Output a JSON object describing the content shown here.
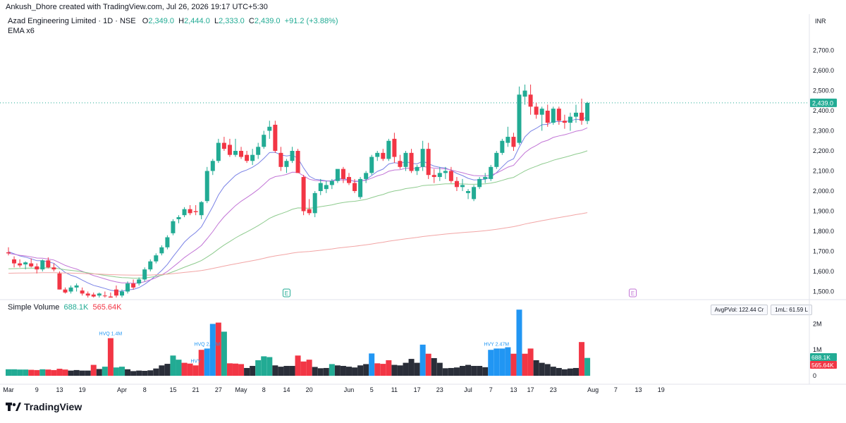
{
  "header": {
    "credit": "Ankush_Dhore created with TradingView.com, Jul 26, 2026 19:17 UTC+5:30"
  },
  "legend": {
    "symbol": "Azad Engineering Limited · 1D · NSE",
    "open_label": "O",
    "open": "2,349.0",
    "high_label": "H",
    "high": "2,444.0",
    "low_label": "L",
    "low": "2,333.0",
    "close_label": "C",
    "close": "2,439.0",
    "change": "+91.2 (+3.88%)",
    "indicator": "EMA x6"
  },
  "volume_legend": {
    "title": "Simple Volume",
    "v1": "688.1K",
    "v2": "565.64K"
  },
  "pills": {
    "avg": "AvgPVol: 122.44 Cr",
    "ml": "1mL: 61.59 L"
  },
  "brand": {
    "name": "TradingView"
  },
  "colors": {
    "up": "#22ab94",
    "down": "#f23645",
    "neutral": "#2a2e39",
    "hv": "#2196f3",
    "ema1": "#7b83e6",
    "ema2": "#c275d6",
    "ema3": "#8ecb8e",
    "ema4": "#f2a5a5"
  },
  "icons": {
    "event": "earnings-e-icon"
  },
  "chart_data": {
    "type": "candlestick",
    "currency": "INR",
    "price_ticks": [
      "2,700.0",
      "2,600.0",
      "2,500.0",
      "2,400.0",
      "2,300.0",
      "2,200.0",
      "2,100.0",
      "2,000.0",
      "1,900.0",
      "1,800.0",
      "1,700.0",
      "1,600.0",
      "1,500.0"
    ],
    "price_tick_values": [
      2700,
      2600,
      2500,
      2400,
      2300,
      2200,
      2100,
      2000,
      1900,
      1800,
      1700,
      1600,
      1500
    ],
    "price_range": [
      1460,
      2830
    ],
    "last_price_label": "2,439.0",
    "last_price": 2439,
    "volume_ticks": [
      "2M",
      "1M",
      "0"
    ],
    "volume_tick_values": [
      2000000,
      1000000,
      0
    ],
    "volume_range": [
      0,
      2800000
    ],
    "volume_last_labels": [
      "688.1K",
      "565.64K"
    ],
    "volume_last_values": [
      688100,
      565640
    ],
    "x_ticks": [
      {
        "label": "Mar",
        "idx": 0
      },
      {
        "label": "9",
        "idx": 5
      },
      {
        "label": "13",
        "idx": 9
      },
      {
        "label": "19",
        "idx": 13
      },
      {
        "label": "Apr",
        "idx": 20
      },
      {
        "label": "8",
        "idx": 24
      },
      {
        "label": "15",
        "idx": 29
      },
      {
        "label": "21",
        "idx": 33
      },
      {
        "label": "27",
        "idx": 37
      },
      {
        "label": "May",
        "idx": 41
      },
      {
        "label": "8",
        "idx": 45
      },
      {
        "label": "14",
        "idx": 49
      },
      {
        "label": "20",
        "idx": 53
      },
      {
        "label": "Jun",
        "idx": 60
      },
      {
        "label": "5",
        "idx": 64
      },
      {
        "label": "11",
        "idx": 68
      },
      {
        "label": "17",
        "idx": 72
      },
      {
        "label": "23",
        "idx": 76
      },
      {
        "label": "Jul",
        "idx": 81
      },
      {
        "label": "7",
        "idx": 85
      },
      {
        "label": "13",
        "idx": 89
      },
      {
        "label": "17",
        "idx": 92
      },
      {
        "label": "23",
        "idx": 96
      },
      {
        "label": "Aug",
        "idx": 103
      },
      {
        "label": "7",
        "idx": 107
      },
      {
        "label": "13",
        "idx": 111
      },
      {
        "label": "19",
        "idx": 115
      }
    ],
    "volume_annotations": [
      {
        "label": "HVQ 1.4M",
        "idx": 18
      },
      {
        "label": "HVY",
        "idx": 33
      },
      {
        "label": "HVQ 2.83M",
        "idx": 35
      },
      {
        "label": "HVY 2.47M",
        "idx": 86
      }
    ],
    "events": [
      {
        "label": "E",
        "idx": 49
      },
      {
        "label": "E",
        "idx": 110
      }
    ],
    "ohlc": [
      [
        1695,
        1720,
        1680,
        1690
      ],
      [
        1660,
        1675,
        1620,
        1640
      ],
      [
        1640,
        1660,
        1620,
        1630
      ],
      [
        1635,
        1650,
        1610,
        1645
      ],
      [
        1640,
        1665,
        1620,
        1625
      ],
      [
        1625,
        1640,
        1590,
        1610
      ],
      [
        1610,
        1660,
        1600,
        1655
      ],
      [
        1655,
        1670,
        1615,
        1620
      ],
      [
        1620,
        1640,
        1600,
        1610
      ],
      [
        1590,
        1600,
        1510,
        1510
      ],
      [
        1510,
        1520,
        1490,
        1495
      ],
      [
        1500,
        1530,
        1490,
        1520
      ],
      [
        1520,
        1540,
        1500,
        1530
      ],
      [
        1505,
        1520,
        1480,
        1490
      ],
      [
        1490,
        1500,
        1470,
        1480
      ],
      [
        1485,
        1495,
        1470,
        1475
      ],
      [
        1480,
        1495,
        1470,
        1490
      ],
      [
        1480,
        1500,
        1470,
        1478
      ],
      [
        1475,
        1495,
        1470,
        1470
      ],
      [
        1510,
        1530,
        1470,
        1480
      ],
      [
        1480,
        1510,
        1470,
        1500
      ],
      [
        1500,
        1550,
        1490,
        1540
      ],
      [
        1540,
        1560,
        1510,
        1520
      ],
      [
        1540,
        1570,
        1530,
        1560
      ],
      [
        1560,
        1620,
        1550,
        1610
      ],
      [
        1610,
        1660,
        1600,
        1650
      ],
      [
        1650,
        1690,
        1640,
        1680
      ],
      [
        1690,
        1730,
        1680,
        1720
      ],
      [
        1720,
        1780,
        1710,
        1770
      ],
      [
        1790,
        1860,
        1780,
        1850
      ],
      [
        1860,
        1880,
        1840,
        1870
      ],
      [
        1880,
        1920,
        1870,
        1910
      ],
      [
        1910,
        1930,
        1880,
        1890
      ],
      [
        1900,
        1930,
        1880,
        1895
      ],
      [
        1880,
        1950,
        1860,
        1945
      ],
      [
        1950,
        2120,
        1940,
        2100
      ],
      [
        2100,
        2160,
        2080,
        2150
      ],
      [
        2150,
        2260,
        2140,
        2240
      ],
      [
        2240,
        2270,
        2200,
        2210
      ],
      [
        2230,
        2260,
        2170,
        2180
      ],
      [
        2180,
        2260,
        2170,
        2200
      ],
      [
        2200,
        2220,
        2160,
        2170
      ],
      [
        2180,
        2200,
        2140,
        2150
      ],
      [
        2150,
        2210,
        2130,
        2180
      ],
      [
        2180,
        2240,
        2160,
        2220
      ],
      [
        2220,
        2300,
        2210,
        2280
      ],
      [
        2300,
        2350,
        2260,
        2320
      ],
      [
        2330,
        2350,
        2190,
        2200
      ],
      [
        2190,
        2220,
        2100,
        2120
      ],
      [
        2120,
        2160,
        2090,
        2150
      ],
      [
        2150,
        2220,
        2140,
        2200
      ],
      [
        2200,
        2210,
        2090,
        2090
      ],
      [
        2070,
        2080,
        1880,
        1900
      ],
      [
        1910,
        1960,
        1880,
        1890
      ],
      [
        1890,
        2000,
        1870,
        1990
      ],
      [
        2000,
        2060,
        1980,
        2040
      ],
      [
        2010,
        2050,
        1990,
        2030
      ],
      [
        2030,
        2060,
        2010,
        2050
      ],
      [
        2050,
        2100,
        2040,
        2110
      ],
      [
        2110,
        2120,
        2040,
        2060
      ],
      [
        2070,
        2090,
        2030,
        2040
      ],
      [
        2040,
        2060,
        1990,
        2000
      ],
      [
        1970,
        2070,
        1960,
        2060
      ],
      [
        2060,
        2100,
        2040,
        2090
      ],
      [
        2090,
        2180,
        2080,
        2170
      ],
      [
        2170,
        2200,
        2150,
        2190
      ],
      [
        2190,
        2210,
        2150,
        2160
      ],
      [
        2160,
        2260,
        2150,
        2250
      ],
      [
        2260,
        2290,
        2140,
        2170
      ],
      [
        2150,
        2180,
        2110,
        2120
      ],
      [
        2120,
        2200,
        2100,
        2190
      ],
      [
        2190,
        2210,
        2090,
        2100
      ],
      [
        2100,
        2130,
        2080,
        2120
      ],
      [
        2120,
        2250,
        2100,
        2210
      ],
      [
        2210,
        2240,
        2060,
        2080
      ],
      [
        2080,
        2110,
        2040,
        2070
      ],
      [
        2070,
        2120,
        2050,
        2090
      ],
      [
        2090,
        2120,
        2060,
        2100
      ],
      [
        2100,
        2120,
        2040,
        2050
      ],
      [
        2050,
        2070,
        2000,
        2020
      ],
      [
        2020,
        2060,
        2000,
        2030
      ],
      [
        1990,
        2010,
        1960,
        2000
      ],
      [
        1960,
        2030,
        1950,
        2020
      ],
      [
        2020,
        2070,
        2010,
        2060
      ],
      [
        2060,
        2090,
        2040,
        2070
      ],
      [
        2060,
        2130,
        2050,
        2120
      ],
      [
        2120,
        2200,
        2110,
        2190
      ],
      [
        2190,
        2260,
        2180,
        2250
      ],
      [
        2240,
        2320,
        2220,
        2270
      ],
      [
        2270,
        2290,
        2200,
        2220
      ],
      [
        2240,
        2520,
        2230,
        2480
      ],
      [
        2470,
        2530,
        2430,
        2500
      ],
      [
        2480,
        2530,
        2380,
        2420
      ],
      [
        2420,
        2440,
        2360,
        2380
      ],
      [
        2380,
        2420,
        2300,
        2410
      ],
      [
        2400,
        2430,
        2320,
        2340
      ],
      [
        2340,
        2420,
        2330,
        2410
      ],
      [
        2410,
        2420,
        2330,
        2350
      ],
      [
        2350,
        2380,
        2310,
        2340
      ],
      [
        2340,
        2390,
        2300,
        2370
      ],
      [
        2370,
        2430,
        2340,
        2390
      ],
      [
        2390,
        2460,
        2330,
        2350
      ],
      [
        2349,
        2444,
        2333,
        2439
      ]
    ],
    "volume": [
      {
        "v": 250000,
        "c": "up"
      },
      {
        "v": 250000,
        "c": "up"
      },
      {
        "v": 240000,
        "c": "up"
      },
      {
        "v": 240000,
        "c": "up"
      },
      {
        "v": 230000,
        "c": "down"
      },
      {
        "v": 220000,
        "c": "down"
      },
      {
        "v": 250000,
        "c": "up"
      },
      {
        "v": 240000,
        "c": "down"
      },
      {
        "v": 220000,
        "c": "down"
      },
      {
        "v": 270000,
        "c": "down"
      },
      {
        "v": 240000,
        "c": "down"
      },
      {
        "v": 200000,
        "c": "neutral"
      },
      {
        "v": 220000,
        "c": "neutral"
      },
      {
        "v": 200000,
        "c": "neutral"
      },
      {
        "v": 200000,
        "c": "neutral"
      },
      {
        "v": 420000,
        "c": "down"
      },
      {
        "v": 260000,
        "c": "neutral"
      },
      {
        "v": 350000,
        "c": "up"
      },
      {
        "v": 1450000,
        "c": "down"
      },
      {
        "v": 320000,
        "c": "up"
      },
      {
        "v": 350000,
        "c": "up"
      },
      {
        "v": 250000,
        "c": "neutral"
      },
      {
        "v": 180000,
        "c": "neutral"
      },
      {
        "v": 200000,
        "c": "neutral"
      },
      {
        "v": 190000,
        "c": "neutral"
      },
      {
        "v": 210000,
        "c": "neutral"
      },
      {
        "v": 280000,
        "c": "neutral"
      },
      {
        "v": 400000,
        "c": "neutral"
      },
      {
        "v": 460000,
        "c": "neutral"
      },
      {
        "v": 780000,
        "c": "up"
      },
      {
        "v": 620000,
        "c": "up"
      },
      {
        "v": 500000,
        "c": "down"
      },
      {
        "v": 470000,
        "c": "down"
      },
      {
        "v": 400000,
        "c": "down"
      },
      {
        "v": 1000000,
        "c": "down"
      },
      {
        "v": 1050000,
        "c": "hv"
      },
      {
        "v": 2000000,
        "c": "hv"
      },
      {
        "v": 2050000,
        "c": "down"
      },
      {
        "v": 1700000,
        "c": "up"
      },
      {
        "v": 480000,
        "c": "down"
      },
      {
        "v": 470000,
        "c": "down"
      },
      {
        "v": 450000,
        "c": "down"
      },
      {
        "v": 300000,
        "c": "neutral"
      },
      {
        "v": 380000,
        "c": "neutral"
      },
      {
        "v": 600000,
        "c": "up"
      },
      {
        "v": 750000,
        "c": "up"
      },
      {
        "v": 720000,
        "c": "up"
      },
      {
        "v": 400000,
        "c": "neutral"
      },
      {
        "v": 350000,
        "c": "neutral"
      },
      {
        "v": 380000,
        "c": "neutral"
      },
      {
        "v": 380000,
        "c": "neutral"
      },
      {
        "v": 780000,
        "c": "down"
      },
      {
        "v": 550000,
        "c": "down"
      },
      {
        "v": 620000,
        "c": "down"
      },
      {
        "v": 340000,
        "c": "neutral"
      },
      {
        "v": 290000,
        "c": "neutral"
      },
      {
        "v": 300000,
        "c": "neutral"
      },
      {
        "v": 450000,
        "c": "up"
      },
      {
        "v": 400000,
        "c": "neutral"
      },
      {
        "v": 380000,
        "c": "neutral"
      },
      {
        "v": 350000,
        "c": "neutral"
      },
      {
        "v": 320000,
        "c": "neutral"
      },
      {
        "v": 400000,
        "c": "neutral"
      },
      {
        "v": 450000,
        "c": "neutral"
      },
      {
        "v": 860000,
        "c": "hv"
      },
      {
        "v": 480000,
        "c": "down"
      },
      {
        "v": 460000,
        "c": "down"
      },
      {
        "v": 600000,
        "c": "down"
      },
      {
        "v": 420000,
        "c": "neutral"
      },
      {
        "v": 400000,
        "c": "neutral"
      },
      {
        "v": 500000,
        "c": "neutral"
      },
      {
        "v": 650000,
        "c": "neutral"
      },
      {
        "v": 500000,
        "c": "neutral"
      },
      {
        "v": 1200000,
        "c": "hv"
      },
      {
        "v": 850000,
        "c": "down"
      },
      {
        "v": 680000,
        "c": "neutral"
      },
      {
        "v": 500000,
        "c": "neutral"
      },
      {
        "v": 290000,
        "c": "neutral"
      },
      {
        "v": 300000,
        "c": "neutral"
      },
      {
        "v": 320000,
        "c": "neutral"
      },
      {
        "v": 380000,
        "c": "neutral"
      },
      {
        "v": 420000,
        "c": "neutral"
      },
      {
        "v": 380000,
        "c": "neutral"
      },
      {
        "v": 380000,
        "c": "neutral"
      },
      {
        "v": 330000,
        "c": "neutral"
      },
      {
        "v": 1000000,
        "c": "hv"
      },
      {
        "v": 1050000,
        "c": "hv"
      },
      {
        "v": 1050000,
        "c": "hv"
      },
      {
        "v": 1100000,
        "c": "hv"
      },
      {
        "v": 850000,
        "c": "down"
      },
      {
        "v": 2550000,
        "c": "hv"
      },
      {
        "v": 850000,
        "c": "down"
      },
      {
        "v": 1050000,
        "c": "down"
      },
      {
        "v": 600000,
        "c": "neutral"
      },
      {
        "v": 500000,
        "c": "neutral"
      },
      {
        "v": 450000,
        "c": "neutral"
      },
      {
        "v": 350000,
        "c": "neutral"
      },
      {
        "v": 300000,
        "c": "neutral"
      },
      {
        "v": 250000,
        "c": "neutral"
      },
      {
        "v": 280000,
        "c": "neutral"
      },
      {
        "v": 300000,
        "c": "neutral"
      },
      {
        "v": 1300000,
        "c": "down"
      },
      {
        "v": 688000,
        "c": "up"
      }
    ]
  }
}
